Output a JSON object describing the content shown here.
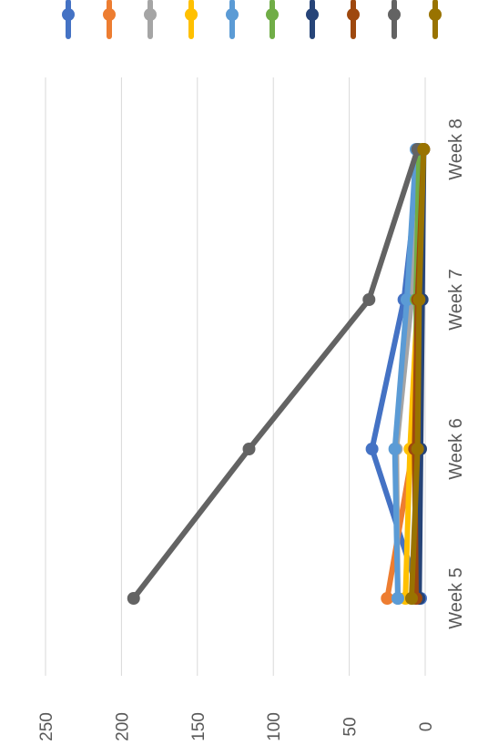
{
  "chart_data": {
    "type": "line",
    "orientation": "rotated 90° clockwise (value axis runs horizontally, categories vertically)",
    "categories": [
      "Week 5",
      "Week 6",
      "Week 7",
      "Week 8"
    ],
    "ylim": [
      0,
      250
    ],
    "yticks": [
      0,
      50,
      100,
      150,
      200,
      250
    ],
    "grid": true,
    "legend_position": "top",
    "series": [
      {
        "color": "#4472c4",
        "values": [
          3,
          35,
          14,
          3
        ]
      },
      {
        "color": "#ed7d31",
        "values": [
          25,
          8,
          4,
          2
        ]
      },
      {
        "color": "#a5a5a5",
        "values": [
          18,
          19,
          9,
          2
        ]
      },
      {
        "color": "#ffc000",
        "values": [
          13,
          10,
          5,
          3
        ]
      },
      {
        "color": "#5b9bd5",
        "values": [
          18,
          20,
          12,
          6
        ]
      },
      {
        "color": "#70ad47",
        "values": [
          8,
          5,
          6,
          4
        ]
      },
      {
        "color": "#264478",
        "values": [
          4,
          3,
          2,
          1
        ]
      },
      {
        "color": "#9e480e",
        "values": [
          6,
          7,
          5,
          1
        ]
      },
      {
        "color": "#636363",
        "values": [
          192,
          116,
          37,
          5
        ]
      },
      {
        "color": "#997300",
        "values": [
          9,
          5,
          4,
          1
        ]
      }
    ]
  }
}
